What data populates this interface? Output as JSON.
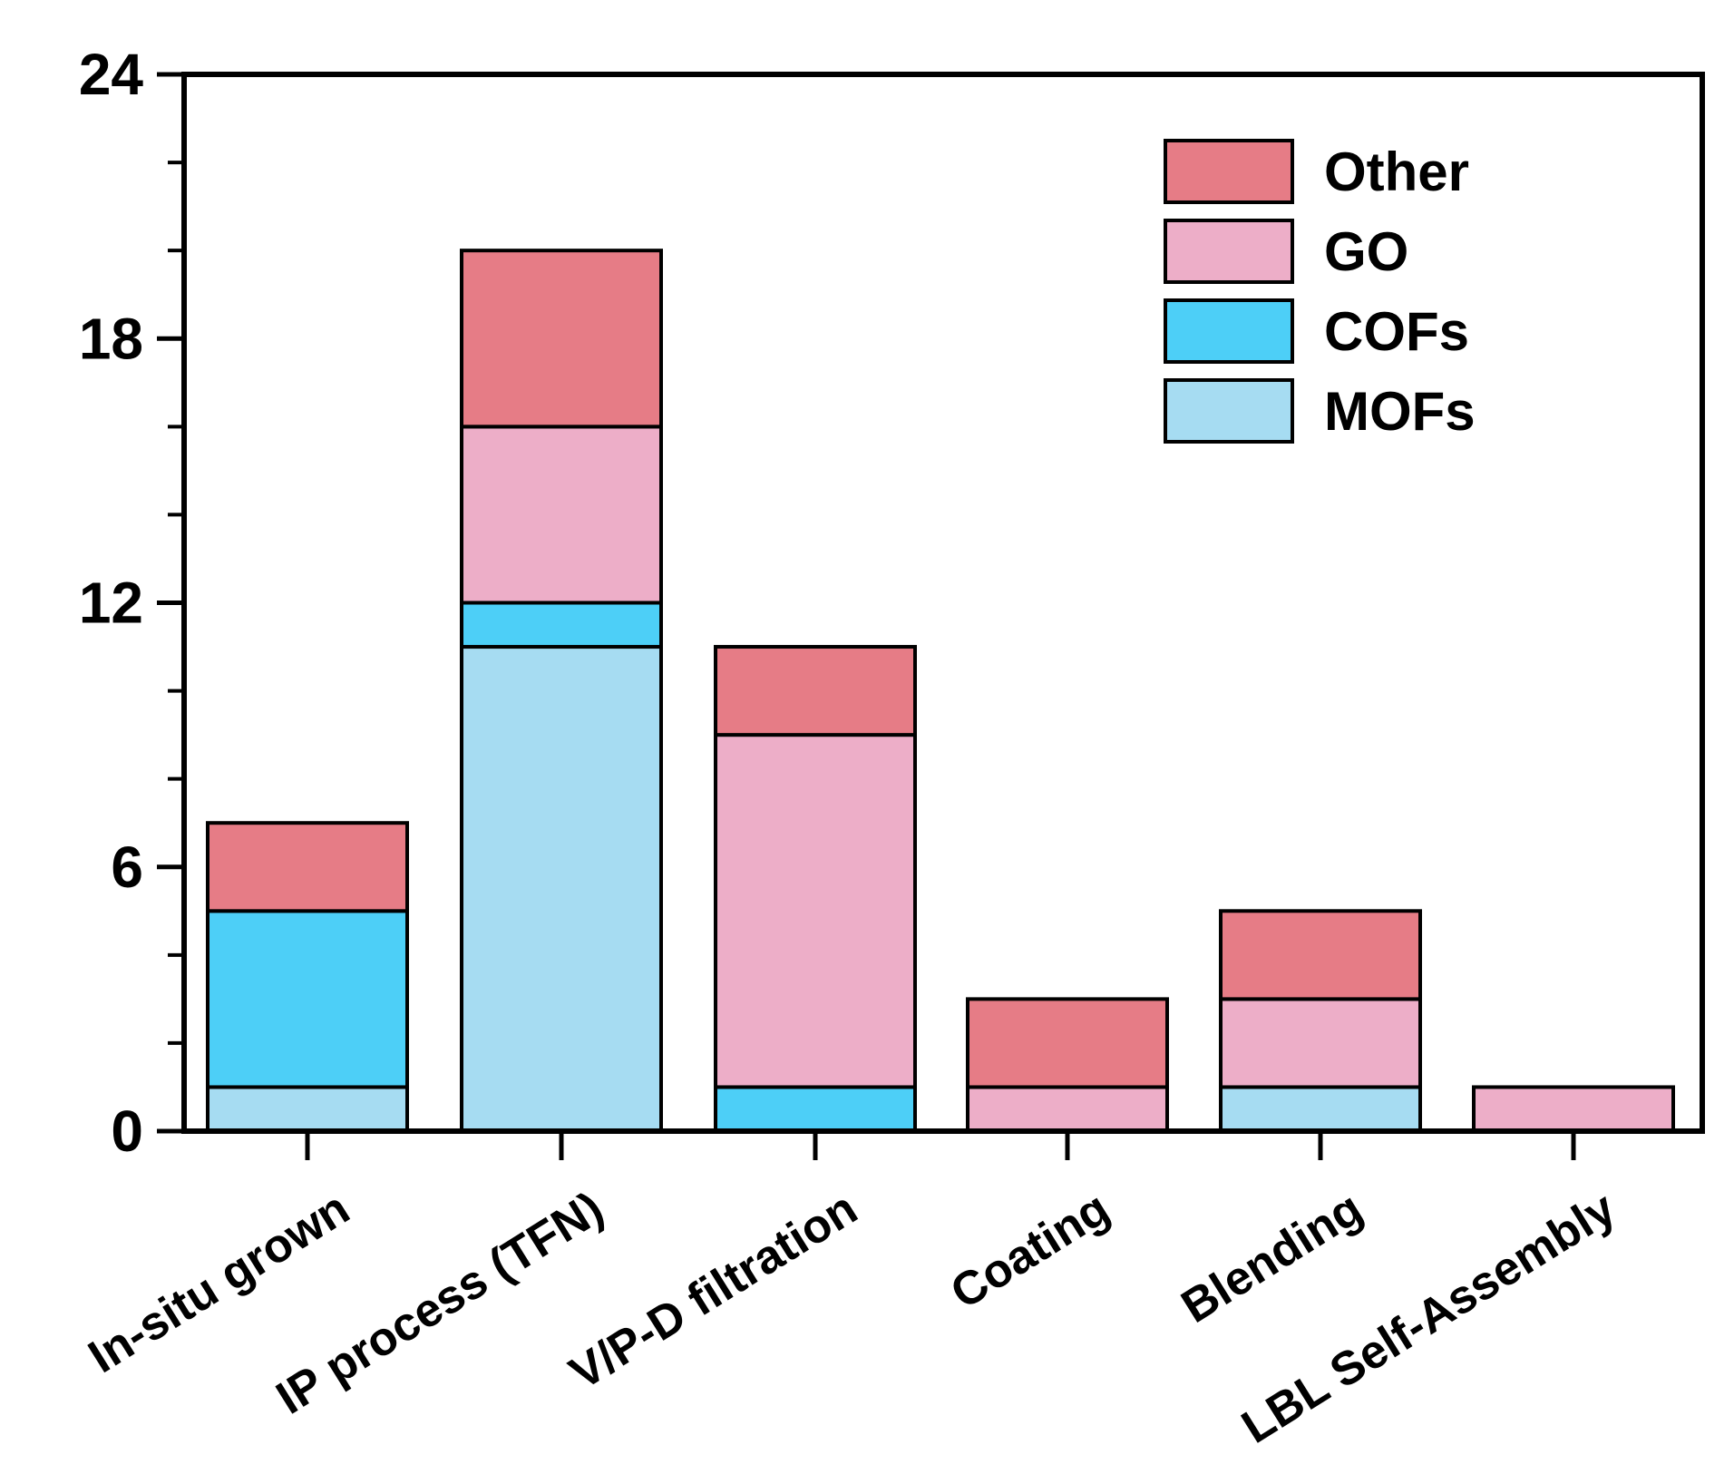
{
  "chart_data": {
    "type": "bar",
    "stacked": true,
    "title": "",
    "xlabel": "",
    "ylabel": "",
    "ylim": [
      0,
      24
    ],
    "yticks": [
      0,
      6,
      12,
      18,
      24
    ],
    "ytick_labels": [
      "0",
      "6",
      "12",
      "18",
      "24"
    ],
    "grid": false,
    "legend_position": "top-right",
    "categories": [
      "In-situ grown",
      "IP process (TFN)",
      "V/P-D filtration",
      "Coating",
      "Blending",
      "LBL Self-Assembly"
    ],
    "series": [
      {
        "name": "MOFs",
        "color": "#a6dcf2",
        "values": [
          1,
          11,
          0,
          0,
          1,
          0
        ]
      },
      {
        "name": "COFs",
        "color": "#4dcff7",
        "values": [
          4,
          1,
          1,
          0,
          0,
          0
        ]
      },
      {
        "name": "GO",
        "color": "#edaec8",
        "values": [
          0,
          4,
          8,
          1,
          2,
          1
        ]
      },
      {
        "name": "Other",
        "color": "#e67c86",
        "values": [
          2,
          4,
          2,
          2,
          2,
          0
        ]
      }
    ],
    "legend_order": [
      "Other",
      "GO",
      "COFs",
      "MOFs"
    ]
  }
}
